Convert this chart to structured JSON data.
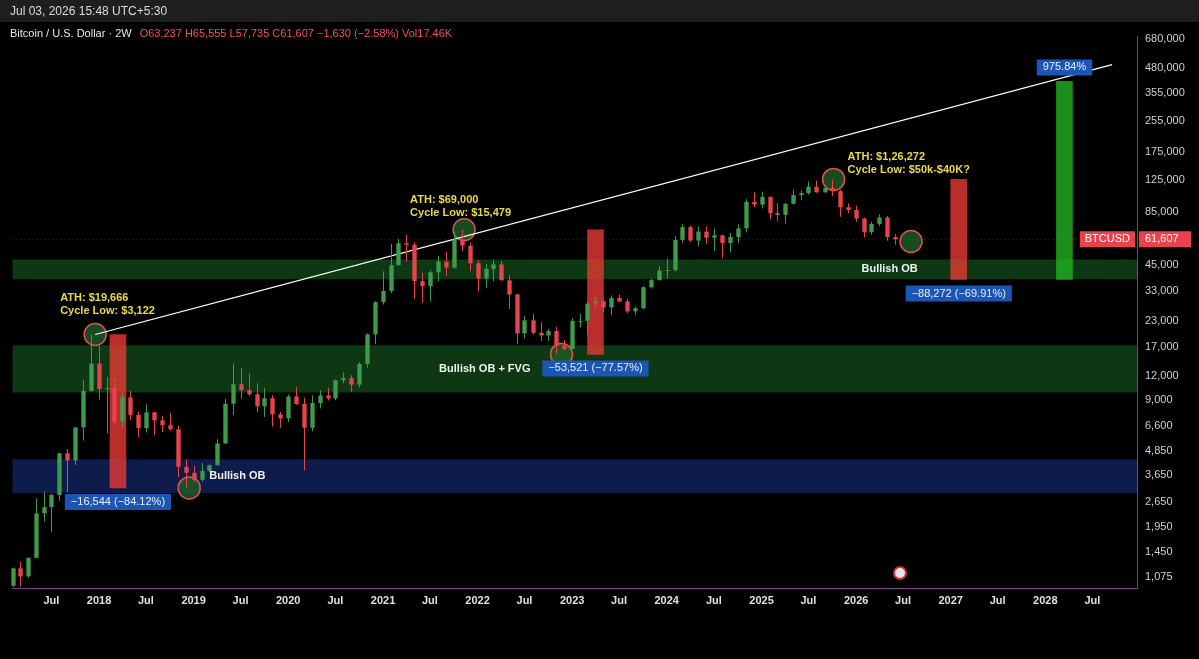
{
  "chart_data": {
    "type": "candlestick",
    "title": "Bitcoin / U.S. Dollar · 2W",
    "subtitle": "O63,237 H65,555 L57,735 C61,607 −1,630 (−2.58%) Vol17.46K",
    "x": [
      "2017-02",
      "2017-03",
      "2017-04",
      "2017-05",
      "2017-06",
      "2017-07",
      "2017-08",
      "2017-09",
      "2017-10",
      "2017-11",
      "2017-12",
      "2018-01",
      "2018-02",
      "2018-03",
      "2018-04",
      "2018-05",
      "2018-06",
      "2018-07",
      "2018-08",
      "2018-09",
      "2018-10",
      "2018-11",
      "2018-12",
      "2019-01",
      "2019-02",
      "2019-03",
      "2019-04",
      "2019-05",
      "2019-06",
      "2019-07",
      "2019-08",
      "2019-09",
      "2019-10",
      "2019-11",
      "2019-12",
      "2020-01",
      "2020-02",
      "2020-03",
      "2020-04",
      "2020-05",
      "2020-06",
      "2020-07",
      "2020-08",
      "2020-09",
      "2020-10",
      "2020-11",
      "2020-12",
      "2021-01",
      "2021-02",
      "2021-03",
      "2021-04",
      "2021-05",
      "2021-06",
      "2021-07",
      "2021-08",
      "2021-09",
      "2021-10",
      "2021-11",
      "2021-12",
      "2022-01",
      "2022-02",
      "2022-03",
      "2022-04",
      "2022-05",
      "2022-06",
      "2022-07",
      "2022-08",
      "2022-09",
      "2022-10",
      "2022-11",
      "2022-12",
      "2023-01",
      "2023-02",
      "2023-03",
      "2023-04",
      "2023-05",
      "2023-06",
      "2023-07",
      "2023-08",
      "2023-09",
      "2023-10",
      "2023-11",
      "2023-12",
      "2024-01",
      "2024-02",
      "2024-03",
      "2024-04",
      "2024-05",
      "2024-06",
      "2024-07",
      "2024-08",
      "2024-09",
      "2024-10",
      "2024-11",
      "2024-12",
      "2025-01",
      "2025-02",
      "2025-03",
      "2025-04",
      "2025-05",
      "2025-06",
      "2025-07",
      "2025-08",
      "2025-09",
      "2025-10",
      "2025-11",
      "2025-12",
      "2026-01",
      "2026-02",
      "2026-03",
      "2026-04",
      "2026-05",
      "2026-06"
    ],
    "ohlc": [
      [
        965,
        1200,
        950,
        1190
      ],
      [
        1190,
        1290,
        960,
        1080
      ],
      [
        1080,
        1350,
        1060,
        1350
      ],
      [
        1350,
        2760,
        1350,
        2300
      ],
      [
        2300,
        2990,
        2080,
        2480
      ],
      [
        2480,
        2920,
        1830,
        2870
      ],
      [
        2870,
        4760,
        2670,
        4730
      ],
      [
        4730,
        4980,
        2970,
        4340
      ],
      [
        4340,
        6470,
        4110,
        6450
      ],
      [
        6450,
        11400,
        5500,
        10000
      ],
      [
        10000,
        19666,
        9900,
        13880
      ],
      [
        13880,
        17170,
        9000,
        10220
      ],
      [
        10220,
        11790,
        6000,
        10330
      ],
      [
        10330,
        11700,
        6600,
        6930
      ],
      [
        6930,
        9750,
        6430,
        9240
      ],
      [
        9240,
        9990,
        7030,
        7500
      ],
      [
        7500,
        7780,
        5760,
        6390
      ],
      [
        6390,
        8500,
        6070,
        7730
      ],
      [
        7730,
        7760,
        5880,
        7020
      ],
      [
        7020,
        7410,
        6100,
        6620
      ],
      [
        6620,
        7680,
        6200,
        6310
      ],
      [
        6310,
        6590,
        3550,
        4020
      ],
      [
        4020,
        4390,
        3122,
        3740
      ],
      [
        3740,
        4070,
        3350,
        3440
      ],
      [
        3440,
        4200,
        3360,
        3830
      ],
      [
        3830,
        4140,
        3780,
        4100
      ],
      [
        4100,
        5600,
        4090,
        5320
      ],
      [
        5320,
        9090,
        5300,
        8570
      ],
      [
        8570,
        13880,
        7480,
        10820
      ],
      [
        10820,
        13200,
        9080,
        10090
      ],
      [
        10090,
        12330,
        9400,
        9600
      ],
      [
        9600,
        10950,
        7730,
        8300
      ],
      [
        8300,
        10370,
        7300,
        9150
      ],
      [
        9150,
        9510,
        6520,
        7550
      ],
      [
        7550,
        7750,
        6430,
        7190
      ],
      [
        7190,
        9580,
        6870,
        9350
      ],
      [
        9350,
        10500,
        8450,
        8540
      ],
      [
        8540,
        9190,
        3850,
        6420
      ],
      [
        6420,
        9480,
        6150,
        8630
      ],
      [
        8630,
        10080,
        8100,
        9460
      ],
      [
        9460,
        10380,
        8900,
        9140
      ],
      [
        9140,
        11450,
        8950,
        11350
      ],
      [
        11350,
        12480,
        10950,
        11650
      ],
      [
        11650,
        12070,
        9880,
        10780
      ],
      [
        10780,
        14100,
        10420,
        13800
      ],
      [
        13800,
        19900,
        13200,
        19700
      ],
      [
        19700,
        29300,
        17600,
        28990
      ],
      [
        28990,
        41950,
        28130,
        33110
      ],
      [
        33110,
        58350,
        32300,
        45140
      ],
      [
        45140,
        61780,
        44960,
        58740
      ],
      [
        58740,
        64900,
        47050,
        57720
      ],
      [
        57720,
        59500,
        30000,
        37300
      ],
      [
        37300,
        41300,
        28800,
        35040
      ],
      [
        35040,
        42400,
        29300,
        41460
      ],
      [
        41460,
        50500,
        37300,
        47100
      ],
      [
        47100,
        52950,
        39600,
        43820
      ],
      [
        43820,
        67000,
        43300,
        61300
      ],
      [
        61300,
        69000,
        53300,
        57000
      ],
      [
        57000,
        59100,
        42000,
        46200
      ],
      [
        46200,
        47900,
        32950,
        38480
      ],
      [
        38480,
        45800,
        34300,
        43180
      ],
      [
        43180,
        48200,
        37200,
        45540
      ],
      [
        45540,
        47450,
        37600,
        37650
      ],
      [
        37650,
        40000,
        26700,
        31800
      ],
      [
        31800,
        31900,
        17600,
        19930
      ],
      [
        19930,
        24650,
        18800,
        23300
      ],
      [
        23300,
        25200,
        19600,
        20050
      ],
      [
        20050,
        22800,
        18130,
        19430
      ],
      [
        19430,
        21000,
        18200,
        20500
      ],
      [
        20500,
        21470,
        15479,
        17160
      ],
      [
        17160,
        18400,
        16300,
        16540
      ],
      [
        16540,
        23950,
        16500,
        23130
      ],
      [
        23130,
        25250,
        21400,
        23150
      ],
      [
        23150,
        29200,
        19570,
        28470
      ],
      [
        28470,
        31000,
        26900,
        29250
      ],
      [
        29250,
        29850,
        25800,
        27200
      ],
      [
        27200,
        31400,
        24800,
        30470
      ],
      [
        30470,
        31800,
        28900,
        29230
      ],
      [
        29230,
        30200,
        25300,
        25940
      ],
      [
        25940,
        27500,
        24900,
        26960
      ],
      [
        26960,
        35200,
        26550,
        34650
      ],
      [
        34650,
        38400,
        34100,
        37720
      ],
      [
        37720,
        44700,
        37600,
        42280
      ],
      [
        42280,
        48970,
        38500,
        42580
      ],
      [
        42580,
        64000,
        41900,
        61130
      ],
      [
        61130,
        73800,
        59000,
        71300
      ],
      [
        71300,
        72800,
        59600,
        60650
      ],
      [
        60650,
        71950,
        56500,
        67500
      ],
      [
        67500,
        72000,
        58400,
        62700
      ],
      [
        62700,
        70000,
        53500,
        64600
      ],
      [
        64600,
        65100,
        49000,
        58950
      ],
      [
        58950,
        66500,
        52550,
        63300
      ],
      [
        63300,
        73600,
        58900,
        70200
      ],
      [
        70200,
        99600,
        66800,
        96400
      ],
      [
        96400,
        108300,
        90500,
        93400
      ],
      [
        93400,
        109000,
        89200,
        102400
      ],
      [
        102400,
        102800,
        78200,
        84350
      ],
      [
        84350,
        95000,
        76600,
        82550
      ],
      [
        82550,
        95700,
        74400,
        94200
      ],
      [
        94200,
        111900,
        93400,
        104600
      ],
      [
        104600,
        110500,
        98200,
        107150
      ],
      [
        107150,
        123200,
        105200,
        115700
      ],
      [
        115700,
        124500,
        107400,
        108250
      ],
      [
        108250,
        117900,
        107300,
        114050
      ],
      [
        114050,
        126272,
        103500,
        109600
      ],
      [
        109600,
        111200,
        80600,
        90400
      ],
      [
        90400,
        94600,
        84400,
        87500
      ],
      [
        87500,
        92000,
        76000,
        79000
      ],
      [
        79000,
        80000,
        63000,
        67000
      ],
      [
        67000,
        76000,
        65000,
        74000
      ],
      [
        74000,
        83000,
        72000,
        80000
      ],
      [
        80000,
        81500,
        60500,
        63237
      ],
      [
        63237,
        65555,
        57735,
        61607
      ]
    ],
    "series": [
      {
        "type": "line",
        "color": "#ffffff",
        "x": [
          "2017-12-17",
          "2028-09-15"
        ],
        "values": [
          19666,
          500000
        ]
      },
      {
        "type": "scatter",
        "color": "#1e5e26",
        "marker": "circle",
        "x": [
          "2017-12-17",
          "2018-12-15",
          "2021-11-10",
          "2022-11-21",
          "2025-10-06",
          "2026-08-01"
        ],
        "values": [
          19666,
          3122,
          69000,
          15479,
          126272,
          60000
        ]
      },
      {
        "type": "bar",
        "colors": [
          "#e53935",
          "#e53935",
          "#e53935",
          "#22b322"
        ],
        "x": [
          "2018-03-15",
          "2023-04-01",
          "2027-02-01",
          "2028-03-15"
        ],
        "base": [
          19666,
          69000,
          126272,
          38000
        ],
        "values": [
          -16544,
          -53521,
          -88272,
          370819
        ],
        "value_labels": [
          "−16,544 (−84.12%)",
          "−53,521 (−77.57%)",
          "−88,272 (−69.91%)",
          null
        ]
      }
    ],
    "bands": [
      {
        "axis": "y",
        "from": 2940,
        "to": 4400,
        "label": "Bullish OB",
        "color": "#1e3fa8"
      },
      {
        "axis": "y",
        "from": 9800,
        "to": 17300,
        "label": "Bullish OB + FVG",
        "color": "#1f7a2a"
      },
      {
        "axis": "y",
        "from": 38100,
        "to": 48300,
        "label": "Bullish OB",
        "color": "#1f7a2a"
      }
    ],
    "annotations": [
      "Jul 03, 2026 15:48 UTC+5:30",
      {
        "text": "ATH: $19,666\nCycle Low: $3,122",
        "x": "2017-12-17",
        "y": 19666
      },
      {
        "text": "ATH: $69,000\nCycle Low: $15,479",
        "x": "2021-11-10",
        "y": 69000
      },
      {
        "text": "ATH: $1,26,272\nCycle Low: $50k-$40K?",
        "x": "2025-10-06",
        "y": 126272
      },
      {
        "text": "975.84%",
        "x": "2028-03-15",
        "y": 408819
      }
    ],
    "ref_lines": [
      {
        "axis": "y",
        "value": 61607,
        "label": "BTCUSD",
        "color": "#e8434c",
        "line_style": "dotted"
      }
    ],
    "xlim": [
      "2017-02-01",
      "2028-12-20"
    ],
    "xticks": [
      {
        "value": "2017-07-01",
        "label": "Jul"
      },
      {
        "value": "2018-01-01",
        "label": "2018"
      },
      {
        "value": "2018-07-01",
        "label": "Jul"
      },
      {
        "value": "2019-01-01",
        "label": "2019"
      },
      {
        "value": "2019-07-01",
        "label": "Jul"
      },
      {
        "value": "2020-01-01",
        "label": "2020"
      },
      {
        "value": "2020-07-01",
        "label": "Jul"
      },
      {
        "value": "2021-01-01",
        "label": "2021"
      },
      {
        "value": "2021-07-01",
        "label": "Jul"
      },
      {
        "value": "2022-01-01",
        "label": "2022"
      },
      {
        "value": "2022-07-01",
        "label": "Jul"
      },
      {
        "value": "2023-01-01",
        "label": "2023"
      },
      {
        "value": "2023-07-01",
        "label": "Jul"
      },
      {
        "value": "2024-01-01",
        "label": "2024"
      },
      {
        "value": "2024-07-01",
        "label": "Jul"
      },
      {
        "value": "2025-01-01",
        "label": "2025"
      },
      {
        "value": "2025-07-01",
        "label": "Jul"
      },
      {
        "value": "2026-01-01",
        "label": "2026"
      },
      {
        "value": "2026-07-01",
        "label": "Jul"
      },
      {
        "value": "2027-01-01",
        "label": "2027"
      },
      {
        "value": "2027-07-01",
        "label": "Jul"
      },
      {
        "value": "2028-01-01",
        "label": "2028"
      },
      {
        "value": "2028-07-01",
        "label": "Jul"
      }
    ],
    "ylim": [
      940,
      700000
    ],
    "log": "y",
    "yticks": [
      {
        "value": 1075,
        "label": "1,075"
      },
      {
        "value": 1450,
        "label": "1,450"
      },
      {
        "value": 1950,
        "label": "1,950"
      },
      {
        "value": 2650,
        "label": "2,650"
      },
      {
        "value": 3650,
        "label": "3,650"
      },
      {
        "value": 4850,
        "label": "4,850"
      },
      {
        "value": 6600,
        "label": "6,600"
      },
      {
        "value": 9000,
        "label": "9,000"
      },
      {
        "value": 12000,
        "label": "12,000"
      },
      {
        "value": 17000,
        "label": "17,000"
      },
      {
        "value": 23000,
        "label": "23,000"
      },
      {
        "value": 33000,
        "label": "33,000"
      },
      {
        "value": 45000,
        "label": "45,000"
      },
      {
        "value": 61607,
        "label": "61,607"
      },
      {
        "value": 85000,
        "label": "85,000"
      },
      {
        "value": 125000,
        "label": "125,000"
      },
      {
        "value": 175000,
        "label": "175,000"
      },
      {
        "value": 255000,
        "label": "255,000"
      },
      {
        "value": 355000,
        "label": "355,000"
      },
      {
        "value": 480000,
        "label": "480,000"
      },
      {
        "value": 680000,
        "label": "680,000"
      }
    ],
    "grid": false,
    "legend": false
  }
}
